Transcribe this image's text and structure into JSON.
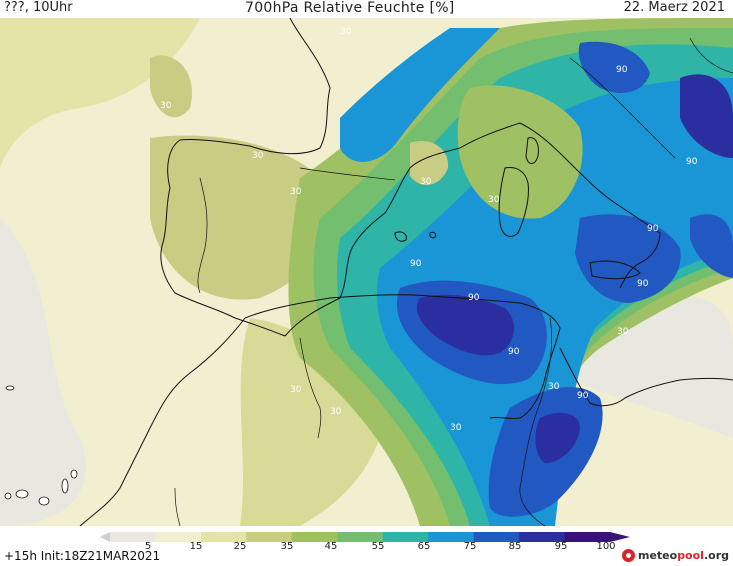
{
  "header": {
    "location": "???, 10Uhr",
    "title": "700hPa Relative Feuchte [%]",
    "date": "22. Maerz 2021"
  },
  "footer": {
    "init": "+15h  Init:18Z21MAR2021",
    "brand_main": "meteo",
    "brand_accent": "pool",
    "brand_suffix": ".org"
  },
  "colorbar": {
    "ticks": [
      "5",
      "15",
      "25",
      "35",
      "45",
      "55",
      "65",
      "75",
      "85",
      "95",
      "100"
    ],
    "colors": [
      "#e8e8e0",
      "#f1efcf",
      "#e4e3a8",
      "#c8cd83",
      "#a0c064",
      "#74bf6f",
      "#2fb5a8",
      "#1a96d6",
      "#2258c2",
      "#2a2e9e",
      "#3a1278"
    ]
  },
  "contour_labels": [
    "30",
    "30",
    "30",
    "30",
    "30",
    "30",
    "30",
    "30",
    "30",
    "30",
    "30",
    "90",
    "90",
    "90",
    "90",
    "90",
    "90",
    "90",
    "90"
  ]
}
